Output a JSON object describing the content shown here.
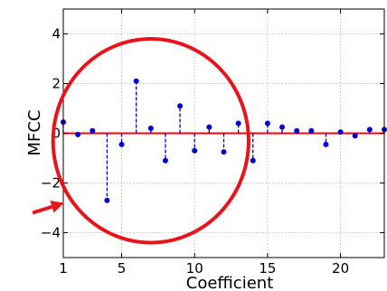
{
  "chart_data": {
    "type": "stem",
    "xlabel": "Coefficient",
    "ylabel": "MFCC",
    "xlim": [
      1,
      23
    ],
    "ylim": [
      -5,
      5
    ],
    "grid": true,
    "x_ticks": [
      1,
      5,
      10,
      15,
      20
    ],
    "y_ticks": [
      -4,
      -2,
      0,
      2,
      4
    ],
    "x_tick_labels": [
      "1",
      "5",
      "10",
      "15",
      "20"
    ],
    "y_tick_labels": [
      "−4",
      "−2",
      "0",
      "2",
      "4"
    ],
    "baseline": 0,
    "colors": {
      "stem": "#0000cc",
      "marker": "#0000cc",
      "baseline": "#ff0000",
      "annotation": "#e8141b"
    },
    "series": [
      {
        "x": [
          1,
          2,
          3,
          4,
          5,
          6,
          7,
          8,
          9,
          10,
          11,
          12,
          13,
          14,
          15,
          16,
          17,
          18,
          19,
          20,
          21,
          22,
          23
        ],
        "values": [
          0.45,
          -0.05,
          0.1,
          -2.7,
          -0.45,
          2.1,
          0.2,
          -1.1,
          1.1,
          -0.7,
          0.25,
          -0.75,
          0.4,
          -1.1,
          0.4,
          0.25,
          0.1,
          0.1,
          -0.45,
          0.05,
          -0.1,
          0.15,
          0.15
        ]
      }
    ],
    "annotations": [
      {
        "type": "circle",
        "center_x": 7,
        "center_y": -0.3,
        "radius_x": 6.7,
        "radius_y": 4.1
      },
      {
        "type": "arrow",
        "from_x": -1.1,
        "from_y": -3.2,
        "to_x": 1.05,
        "to_y": -2.8
      }
    ]
  }
}
